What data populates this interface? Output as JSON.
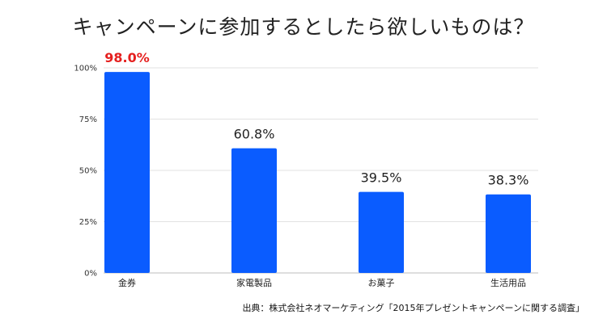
{
  "chart_data": {
    "type": "bar",
    "title": "キャンペーンに参加するとしたら欲しいものは？",
    "categories": [
      "金券",
      "家電製品",
      "お菓子",
      "生活用品"
    ],
    "values": [
      98.0,
      60.8,
      39.5,
      38.3
    ],
    "value_labels": [
      "98.0%",
      "60.8%",
      "39.5%",
      "38.3%"
    ],
    "highlight_index": 0,
    "ylim": [
      0,
      100
    ],
    "yticks": [
      0,
      25,
      50,
      75,
      100
    ],
    "ytick_labels": [
      "0%",
      "25%",
      "50%",
      "75%",
      "100%"
    ],
    "grid": true,
    "colors": {
      "bar": "#0a5cff",
      "highlight_label": "#e5201f",
      "label": "#222222",
      "grid": "#e2e2e2"
    }
  },
  "source": "出典：株式会社ネオマーケティング「2015年プレゼントキャンペーンに関する調査」"
}
